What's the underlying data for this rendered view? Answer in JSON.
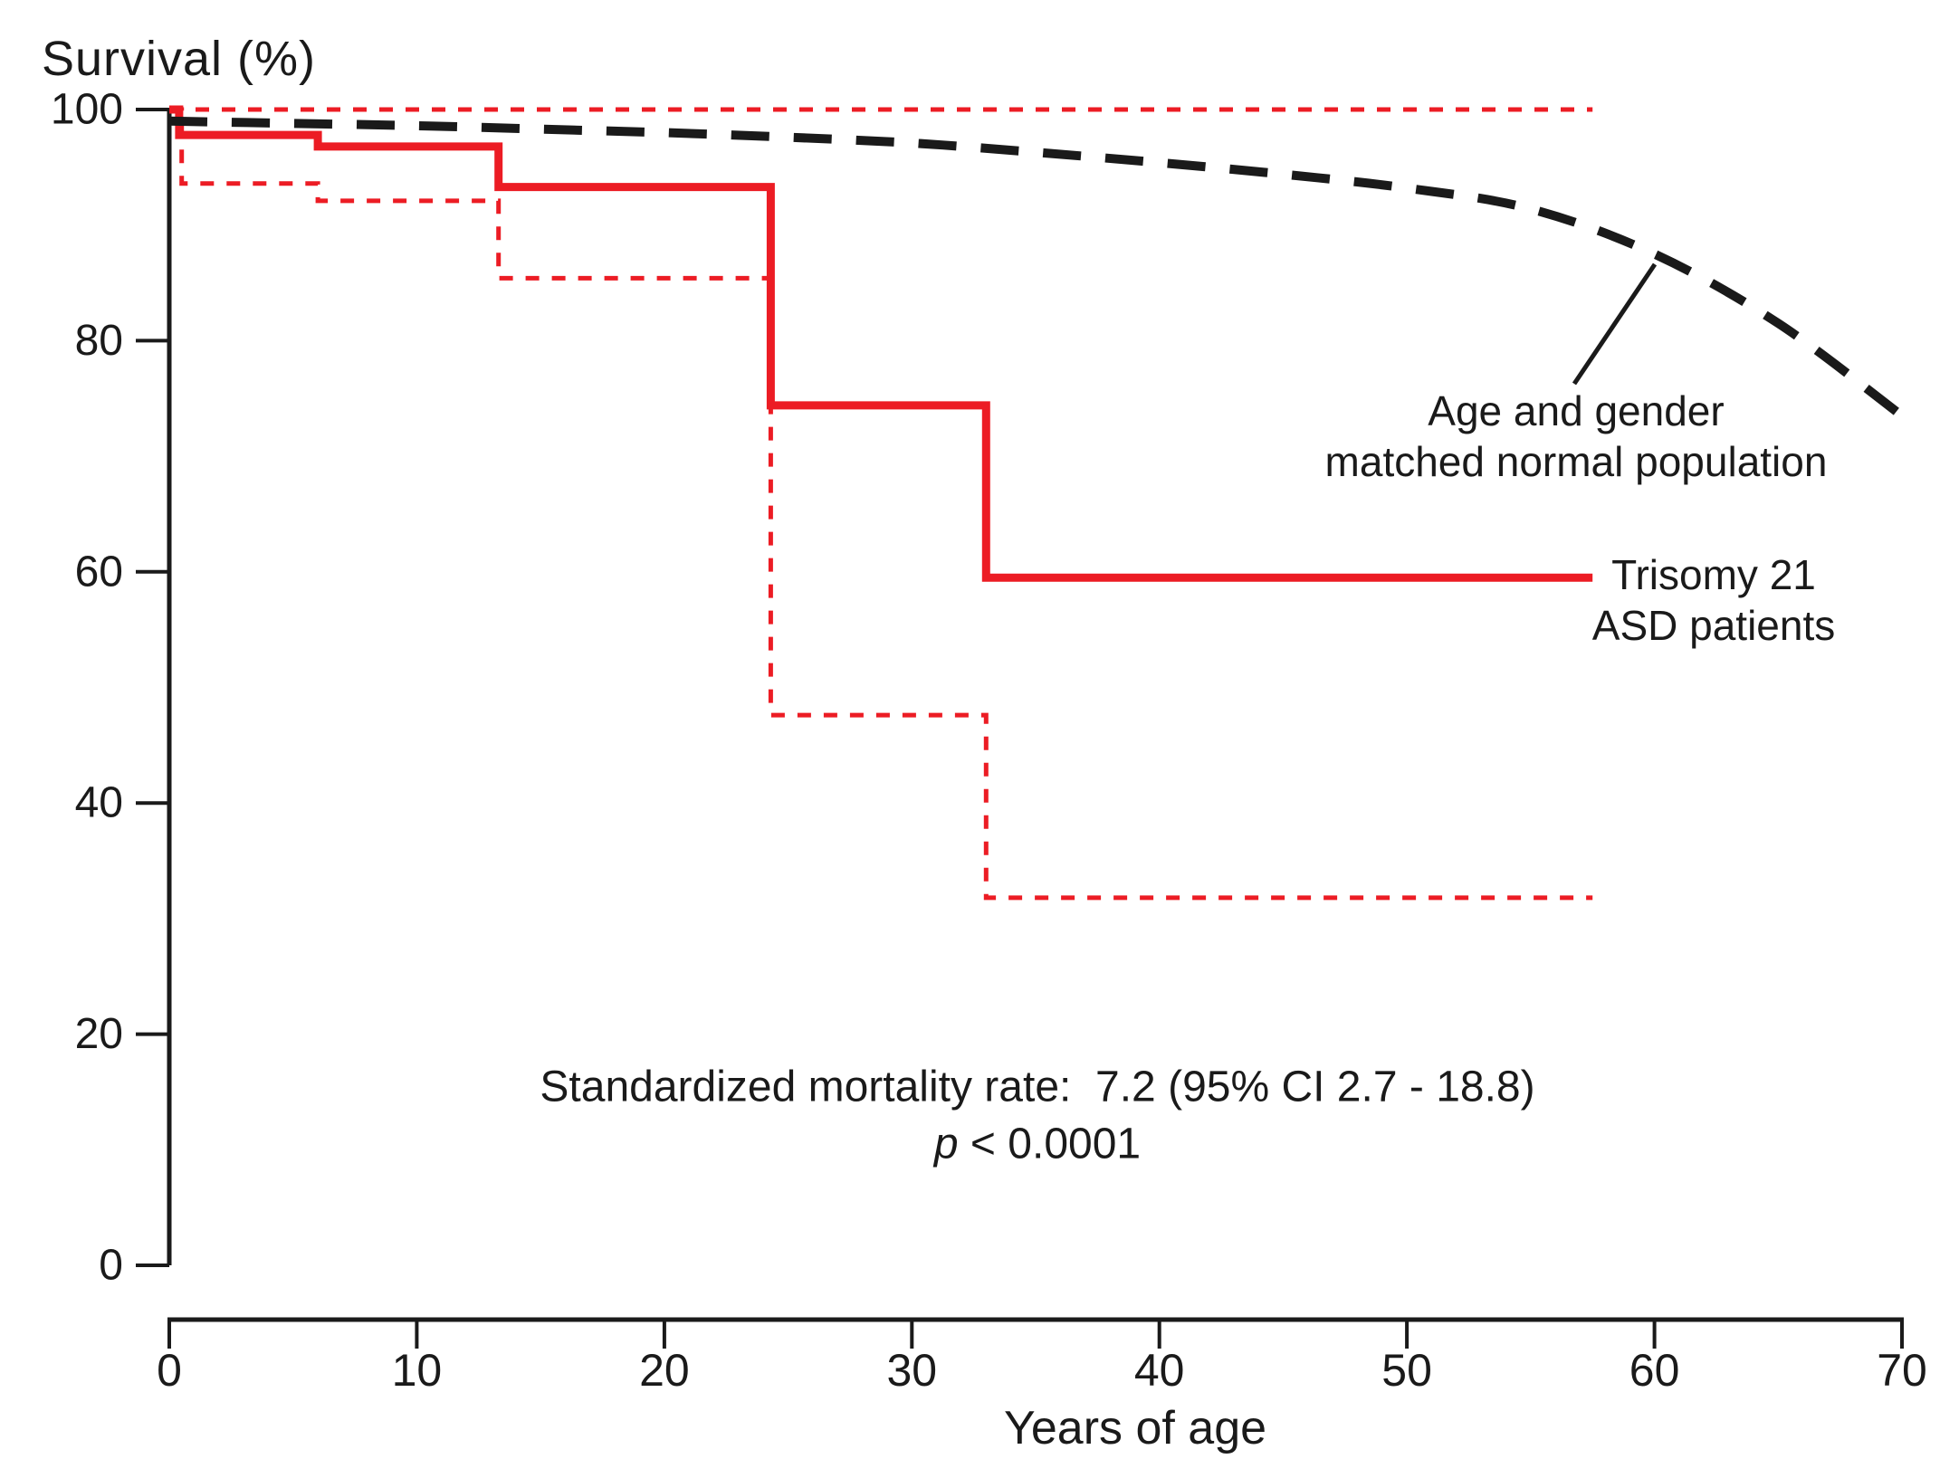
{
  "chart_data": {
    "type": "line",
    "subtype": "kaplan-meier-survival",
    "title": "",
    "ylabel": "Survival (%)",
    "xlabel": "Years of age",
    "xlim": [
      0,
      70
    ],
    "ylim": [
      0,
      100
    ],
    "x_ticks": [
      0,
      10,
      20,
      30,
      40,
      50,
      60,
      70
    ],
    "y_ticks": [
      0,
      20,
      40,
      60,
      80,
      100
    ],
    "grid": false,
    "legend_position": "inline-annotations",
    "colors": {
      "patients": "#ec1c24",
      "normal_population": "#1a1a1a"
    },
    "series": [
      {
        "id": "trisomy_km",
        "name": "Trisomy 21 ASD patients",
        "style": "step",
        "line": "solid",
        "color": "#ec1c24",
        "width": 9,
        "points": [
          [
            0,
            100
          ],
          [
            0.4,
            97.8
          ],
          [
            6,
            96.8
          ],
          [
            13.3,
            93.3
          ],
          [
            24.3,
            74.4
          ],
          [
            33,
            59.5
          ],
          [
            57.5,
            59.5
          ]
        ]
      },
      {
        "id": "ci_upper",
        "name": "95% CI upper bound",
        "style": "step",
        "line": "dashed",
        "color": "#ec1c24",
        "width": 5,
        "points": [
          [
            0,
            100
          ],
          [
            57.5,
            100
          ]
        ]
      },
      {
        "id": "ci_lower",
        "name": "95% CI lower bound",
        "style": "step",
        "line": "dashed",
        "color": "#ec1c24",
        "width": 5,
        "points": [
          [
            0,
            100
          ],
          [
            0.5,
            93.6
          ],
          [
            6,
            92.1
          ],
          [
            13.3,
            85.4
          ],
          [
            24.3,
            47.6
          ],
          [
            33,
            31.8
          ],
          [
            57.5,
            31.8
          ]
        ]
      },
      {
        "id": "normal_population",
        "name": "Age and gender matched normal population",
        "style": "smooth",
        "line": "long-dash",
        "color": "#1a1a1a",
        "width": 10,
        "points": [
          [
            0,
            99
          ],
          [
            5,
            98.8
          ],
          [
            10,
            98.6
          ],
          [
            15,
            98.3
          ],
          [
            20,
            98
          ],
          [
            25,
            97.6
          ],
          [
            30,
            97.1
          ],
          [
            35,
            96.3
          ],
          [
            40,
            95.4
          ],
          [
            45,
            94.4
          ],
          [
            50,
            93.2
          ],
          [
            55,
            91.4
          ],
          [
            60,
            87.5
          ],
          [
            65,
            81.5
          ],
          [
            70,
            73.5
          ]
        ]
      }
    ],
    "annotations": {
      "normal_population": {
        "line1": "Age and gender",
        "line2": "matched normal population"
      },
      "trisomy": {
        "line1": "Trisomy 21",
        "line2": "ASD patients"
      }
    },
    "stats": {
      "line1": "Standardized mortality rate:  7.2 (95% CI 2.7 - 18.8)",
      "p_symbol": "p",
      "p_value": " < 0.0001"
    }
  }
}
